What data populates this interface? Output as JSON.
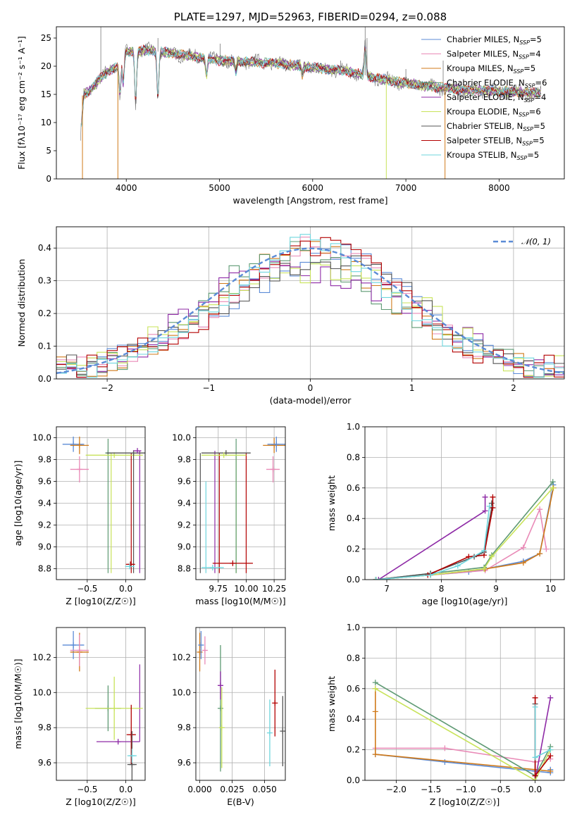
{
  "colors": {
    "Chabrier MILES": "#5b8bd6",
    "Salpeter MILES": "#e98ab7",
    "Kroupa MILES": "#d07a1a",
    "Chabrier ELODIE": "#5e9a73",
    "Salpeter ELODIE": "#8e2aa6",
    "Kroupa ELODIE": "#c8e35a",
    "Chabrier STELIB": "#555555",
    "Salpeter STELIB": "#b30000",
    "Kroupa STELIB": "#6fd6de",
    "data": "#777777",
    "gauss": "#5b8bd6"
  },
  "chart_data": [
    {
      "id": "spectrum",
      "type": "line",
      "title": "PLATE=1297, MJD=52963, FIBERID=0294, z=0.088",
      "xlabel": "wavelength [Angstrom, rest frame]",
      "ylabel": "Flux [fλ10⁻¹⁷ erg cm⁻² s⁻¹ A⁻¹]",
      "xlim": [
        3250,
        8700
      ],
      "ylim": [
        0,
        27
      ],
      "xticks": [
        4000,
        5000,
        6000,
        7000,
        8000
      ],
      "yticks": [
        0,
        5,
        10,
        15,
        20,
        25
      ],
      "legend_position": "top-right",
      "legend": [
        {
          "series": "Chabrier MILES",
          "text": "Chabrier MILES, N",
          "sub": "SSP",
          "tail": "=5"
        },
        {
          "series": "Salpeter MILES",
          "text": "Salpeter MILES, N",
          "sub": "SSP",
          "tail": "=4"
        },
        {
          "series": "Kroupa MILES",
          "text": "Kroupa MILES, N",
          "sub": "SSP",
          "tail": "=5"
        },
        {
          "series": "Chabrier ELODIE",
          "text": "Chabrier ELODIE, N",
          "sub": "SSP",
          "tail": "=6"
        },
        {
          "series": "Salpeter ELODIE",
          "text": "Salpeter ELODIE, N",
          "sub": "SSP",
          "tail": "=4"
        },
        {
          "series": "Kroupa ELODIE",
          "text": "Kroupa ELODIE, N",
          "sub": "SSP",
          "tail": "=6"
        },
        {
          "series": "Chabrier STELIB",
          "text": "Chabrier STELIB, N",
          "sub": "SSP",
          "tail": "=5"
        },
        {
          "series": "Salpeter STELIB",
          "text": "Salpeter STELIB, N",
          "sub": "SSP",
          "tail": "=5"
        },
        {
          "series": "Kroupa STELIB",
          "text": "Kroupa STELIB, N",
          "sub": "SSP",
          "tail": "=5"
        }
      ],
      "continuum": [
        [
          3500,
          14.5
        ],
        [
          3600,
          15.5
        ],
        [
          3700,
          17.5
        ],
        [
          3800,
          19.0
        ],
        [
          3900,
          20.0
        ],
        [
          3950,
          21.5
        ],
        [
          4000,
          22.5
        ],
        [
          4200,
          22.8
        ],
        [
          4400,
          22.5
        ],
        [
          4600,
          22.0
        ],
        [
          4800,
          21.5
        ],
        [
          5000,
          21.0
        ],
        [
          5300,
          20.8
        ],
        [
          5600,
          20.5
        ],
        [
          6000,
          19.8
        ],
        [
          6400,
          19.0
        ],
        [
          6800,
          17.5
        ],
        [
          7200,
          16.5
        ],
        [
          7600,
          15.8
        ],
        [
          8000,
          15.6
        ],
        [
          8400,
          15.2
        ]
      ],
      "features": [
        [
          3933,
          6
        ],
        [
          3968,
          5
        ],
        [
          4101,
          9
        ],
        [
          4340,
          8
        ],
        [
          4861,
          3
        ],
        [
          5175,
          2
        ],
        [
          5890,
          1.5
        ],
        [
          6563,
          -5
        ]
      ],
      "lines": [
        [
          3727,
          27
        ],
        [
          4340,
          25
        ],
        [
          5007,
          24
        ],
        [
          6563,
          27
        ],
        [
          6583,
          25
        ],
        [
          6300,
          21
        ],
        [
          7400,
          21
        ],
        [
          7000,
          19.5
        ]
      ],
      "drops": [
        {
          "series": "Kroupa MILES",
          "x": 3910
        },
        {
          "series": "Kroupa MILES",
          "x": 7420
        },
        {
          "series": "Kroupa ELODIE",
          "x": 6790
        },
        {
          "series": "Kroupa MILES",
          "x": 3530
        }
      ]
    },
    {
      "id": "residuals",
      "type": "line",
      "xlabel": "(data-model)/error",
      "ylabel": "Normed distribution",
      "xlim": [
        -2.5,
        2.5
      ],
      "ylim": [
        0,
        0.465
      ],
      "xticks": [
        -2,
        -1,
        0,
        1,
        2
      ],
      "yticks": [
        0.0,
        0.1,
        0.2,
        0.3,
        0.4
      ],
      "grid": true,
      "legend_position": "top-right",
      "legend": [
        {
          "text": "𝒩(0, 1)"
        }
      ],
      "bin_width": 0.1,
      "gaussian": {
        "mean": 0,
        "sigma": 1
      }
    },
    {
      "id": "age_vs_Z",
      "type": "scatter",
      "xlabel": "Z [log10(Z/Z☉)]",
      "ylabel": "age  [log10(age/yr)]",
      "xlim": [
        -0.9,
        0.25
      ],
      "ylim": [
        8.7,
        10.1
      ],
      "xticks": [
        -0.5,
        0.0
      ],
      "yticks": [
        8.8,
        9.0,
        9.2,
        9.4,
        9.6,
        9.8,
        10.0
      ],
      "grid": true,
      "points": [
        {
          "series": "Chabrier MILES",
          "x": -0.68,
          "y": 9.94,
          "xerr": 0.14,
          "yerr": 0.07
        },
        {
          "series": "Kroupa MILES",
          "x": -0.6,
          "y": 9.93,
          "xerr": 0.12,
          "yerr": 0.08
        },
        {
          "series": "Salpeter MILES",
          "x": -0.6,
          "y": 9.71,
          "xerr": 0.12,
          "yerr": 0.12
        },
        {
          "series": "Chabrier ELODIE",
          "x": -0.23,
          "y": 9.86,
          "xerr": 0.0,
          "yerr": 0.0
        },
        {
          "series": "Kroupa ELODIE",
          "x": -0.15,
          "y": 9.84,
          "xerr": 0.37,
          "yerr": 0.0
        },
        {
          "series": "Chabrier STELIB",
          "x": 0.1,
          "y": 9.86,
          "xerr": 0.35,
          "yerr": 0.0
        },
        {
          "series": "Salpeter ELODIE",
          "x": 0.15,
          "y": 9.88,
          "xerr": 0.05,
          "yerr": 0.0
        },
        {
          "series": "Salpeter STELIB",
          "x": 0.06,
          "y": 8.84,
          "xerr": 0.06,
          "yerr": 0.0
        },
        {
          "series": "Kroupa STELIB",
          "x": 0.05,
          "y": 8.82,
          "xerr": 0.06,
          "yerr": 0.0
        }
      ],
      "vlines": [
        {
          "series": "Chabrier ELODIE",
          "x": -0.23,
          "y0": 8.76,
          "y1": 9.99
        },
        {
          "series": "Kroupa ELODIE",
          "x": -0.19,
          "y0": 8.76,
          "y1": 9.86
        },
        {
          "series": "Salpeter ELODIE",
          "x": 0.18,
          "y0": 8.76,
          "y1": 9.88
        },
        {
          "series": "Salpeter STELIB",
          "x": 0.07,
          "y0": 8.76,
          "y1": 9.86
        },
        {
          "series": "Chabrier STELIB",
          "x": 0.1,
          "y0": 8.76,
          "y1": 9.86
        }
      ]
    },
    {
      "id": "age_vs_mass",
      "type": "scatter",
      "xlabel": "mass [log10(M/M☉)]",
      "ylabel": "",
      "xlim": [
        9.55,
        10.35
      ],
      "ylim": [
        8.7,
        10.1
      ],
      "xticks": [
        9.75,
        10.0,
        10.25
      ],
      "yticks": [
        8.8,
        9.0,
        9.2,
        9.4,
        9.6,
        9.8,
        10.0
      ],
      "grid": true,
      "points": [
        {
          "series": "Kroupa MILES",
          "x": 10.25,
          "y": 9.93,
          "xerr": 0.1,
          "yerr": 0.07
        },
        {
          "series": "Chabrier MILES",
          "x": 10.27,
          "y": 9.94,
          "xerr": 0.08,
          "yerr": 0.07
        },
        {
          "series": "Salpeter MILES",
          "x": 10.24,
          "y": 9.71,
          "xerr": 0.06,
          "yerr": 0.12
        },
        {
          "series": "Chabrier STELIB",
          "x": 9.82,
          "y": 9.86,
          "xerr": 0.22,
          "yerr": 0.0
        },
        {
          "series": "Kroupa ELODIE",
          "x": 9.8,
          "y": 9.84,
          "xerr": 0.2,
          "yerr": 0.0
        },
        {
          "series": "Salpeter STELIB",
          "x": 9.88,
          "y": 8.85,
          "xerr": 0.18,
          "yerr": 0.0
        },
        {
          "series": "Kroupa STELIB",
          "x": 9.7,
          "y": 8.81,
          "xerr": 0.1,
          "yerr": 0.0
        }
      ],
      "vlines": [
        {
          "series": "Chabrier STELIB",
          "x": 9.59,
          "y0": 8.76,
          "y1": 9.86
        },
        {
          "series": "Kroupa STELIB",
          "x": 9.64,
          "y0": 8.76,
          "y1": 9.6
        },
        {
          "series": "Salpeter ELODIE",
          "x": 9.72,
          "y0": 8.76,
          "y1": 9.88
        },
        {
          "series": "Salpeter STELIB",
          "x": 9.76,
          "y0": 8.76,
          "y1": 9.86
        },
        {
          "series": "Kroupa ELODIE",
          "x": 9.91,
          "y0": 8.76,
          "y1": 9.83
        },
        {
          "series": "Chabrier ELODIE",
          "x": 9.91,
          "y0": 8.76,
          "y1": 9.99
        },
        {
          "series": "Salpeter STELIB",
          "x": 10.0,
          "y0": 8.76,
          "y1": 9.86
        }
      ]
    },
    {
      "id": "mw_vs_age",
      "type": "line",
      "xlabel": "age  [log10(age/yr)]",
      "ylabel": "mass weight",
      "xlim": [
        6.6,
        10.25
      ],
      "ylim": [
        0,
        1
      ],
      "xticks": [
        7,
        8,
        9,
        10
      ],
      "yticks": [
        0.0,
        0.2,
        0.4,
        0.6,
        0.8,
        1.0
      ],
      "grid": true,
      "series": [
        {
          "name": "Chabrier MILES",
          "x": [
            6.8,
            7.8,
            8.5,
            8.8,
            9.5,
            9.8,
            10.05
          ],
          "y": [
            0.0,
            0.03,
            0.05,
            0.07,
            0.12,
            0.17,
            0.62
          ]
        },
        {
          "name": "Salpeter MILES",
          "x": [
            6.8,
            7.8,
            8.8,
            9.5,
            9.8,
            9.92
          ],
          "y": [
            0.0,
            0.03,
            0.06,
            0.21,
            0.46,
            0.2
          ]
        },
        {
          "name": "Kroupa MILES",
          "x": [
            6.8,
            7.8,
            8.8,
            9.5,
            9.8,
            10.05
          ],
          "y": [
            0.0,
            0.03,
            0.07,
            0.11,
            0.17,
            0.6
          ]
        },
        {
          "name": "Chabrier ELODIE",
          "x": [
            6.8,
            7.8,
            8.78,
            8.92,
            10.04
          ],
          "y": [
            0.0,
            0.04,
            0.08,
            0.16,
            0.64
          ]
        },
        {
          "name": "Salpeter ELODIE",
          "x": [
            6.85,
            8.8,
            8.8
          ],
          "y": [
            0.0,
            0.45,
            0.54
          ]
        },
        {
          "name": "Kroupa ELODIE",
          "x": [
            6.8,
            7.8,
            8.78,
            8.92,
            10.04
          ],
          "y": [
            0.0,
            0.03,
            0.07,
            0.15,
            0.6
          ]
        },
        {
          "name": "Chabrier STELIB",
          "x": [
            6.8,
            7.8,
            8.6,
            8.78,
            8.92,
            8.92
          ],
          "y": [
            0.0,
            0.04,
            0.15,
            0.18,
            0.47,
            0.5
          ]
        },
        {
          "name": "Salpeter STELIB",
          "x": [
            7.75,
            8.5,
            8.78,
            8.94,
            8.94
          ],
          "y": [
            0.03,
            0.15,
            0.16,
            0.47,
            0.54
          ]
        },
        {
          "name": "Kroupa STELIB",
          "x": [
            6.8,
            7.8,
            8.3,
            8.78,
            8.88
          ],
          "y": [
            0.0,
            0.03,
            0.09,
            0.19,
            0.48
          ]
        }
      ]
    },
    {
      "id": "mass_vs_Z",
      "type": "scatter",
      "xlabel": "Z [log10(Z/Z☉)]",
      "ylabel": "mass [log10(M/M☉)]",
      "xlim": [
        -0.9,
        0.25
      ],
      "ylim": [
        9.5,
        10.37
      ],
      "xticks": [
        -0.5,
        0.0
      ],
      "yticks": [
        9.6,
        9.8,
        10.0,
        10.2
      ],
      "grid": true,
      "points": [
        {
          "series": "Chabrier MILES",
          "x": -0.68,
          "y": 10.27,
          "xerr": 0.14,
          "yerr": 0.08
        },
        {
          "series": "Kroupa MILES",
          "x": -0.6,
          "y": 10.23,
          "xerr": 0.12,
          "yerr": 0.11
        },
        {
          "series": "Salpeter MILES",
          "x": -0.6,
          "y": 10.24,
          "xerr": 0.12,
          "yerr": 0.09
        },
        {
          "series": "Chabrier ELODIE",
          "x": -0.23,
          "y": 9.91,
          "xerr": 0.17,
          "yerr": 0.13
        },
        {
          "series": "Kroupa ELODIE",
          "x": -0.15,
          "y": 9.91,
          "xerr": 0.37,
          "yerr": 0.18
        },
        {
          "series": "Salpeter ELODIE",
          "x": -0.1,
          "y": 9.72,
          "xerr": 0.28,
          "yerr": 0.0
        },
        {
          "series": "Salpeter STELIB",
          "x": 0.07,
          "y": 9.76,
          "xerr": 0.06,
          "yerr": 0.17
        },
        {
          "series": "Chabrier STELIB",
          "x": 0.08,
          "y": 9.59,
          "xerr": 0.06,
          "yerr": 0.19
        },
        {
          "series": "Kroupa STELIB",
          "x": 0.08,
          "y": 9.64,
          "xerr": 0.06,
          "yerr": 0.04
        }
      ],
      "vlines": [
        {
          "series": "Salpeter ELODIE",
          "x": 0.18,
          "y0": 9.72,
          "y1": 10.16
        }
      ]
    },
    {
      "id": "mass_vs_ebv",
      "type": "scatter",
      "xlabel": "E(B-V)",
      "ylabel": "",
      "xlim": [
        -0.003,
        0.066
      ],
      "ylim": [
        9.5,
        10.37
      ],
      "xticks": [
        0.0,
        0.025,
        0.05
      ],
      "yticks": [
        9.6,
        9.8,
        10.0,
        10.2
      ],
      "grid": true,
      "points": [
        {
          "series": "Kroupa MILES",
          "x": 0.0,
          "y": 10.23,
          "xerr": 0,
          "yerr": 0.11
        },
        {
          "series": "Chabrier MILES",
          "x": 0.001,
          "y": 10.27,
          "xerr": 0,
          "yerr": 0.08
        },
        {
          "series": "Salpeter MILES",
          "x": 0.004,
          "y": 10.24,
          "xerr": 0,
          "yerr": 0.08
        },
        {
          "series": "Chabrier ELODIE",
          "x": 0.016,
          "y": 9.91,
          "xerr": 0,
          "yerr": 0.36
        },
        {
          "series": "Salpeter ELODIE",
          "x": 0.016,
          "y": 10.04,
          "xerr": 0,
          "yerr": 0.08
        },
        {
          "series": "Kroupa ELODIE",
          "x": 0.017,
          "y": 9.8,
          "xerr": 0,
          "yerr": 0.23
        },
        {
          "series": "Kroupa STELIB",
          "x": 0.054,
          "y": 9.77,
          "xerr": 0,
          "yerr": 0.19
        },
        {
          "series": "Salpeter STELIB",
          "x": 0.058,
          "y": 9.94,
          "xerr": 0,
          "yerr": 0.19
        },
        {
          "series": "Chabrier STELIB",
          "x": 0.064,
          "y": 9.78,
          "xerr": 0,
          "yerr": 0.2
        }
      ]
    },
    {
      "id": "mw_vs_Z",
      "type": "line",
      "xlabel": "Z [log10(Z/Z☉)]",
      "ylabel": "mass weight",
      "xlim": [
        -2.45,
        0.42
      ],
      "ylim": [
        0,
        1
      ],
      "xticks": [
        -2.0,
        -1.5,
        -1.0,
        -0.5,
        0.0
      ],
      "yticks": [
        0.0,
        0.2,
        0.4,
        0.6,
        0.8,
        1.0
      ],
      "grid": true,
      "series": [
        {
          "name": "Chabrier MILES",
          "x": [
            -2.3,
            -1.3,
            0.0,
            0.22,
            0.22
          ],
          "y": [
            0.17,
            0.12,
            0.06,
            0.05,
            0.07
          ]
        },
        {
          "name": "Salpeter MILES",
          "x": [
            -2.3,
            -1.3,
            0.0,
            0.22
          ],
          "y": [
            0.21,
            0.21,
            0.12,
            0.14
          ]
        },
        {
          "name": "Kroupa MILES",
          "x": [
            -2.3,
            -2.3,
            -2.3,
            0.0,
            0.22
          ],
          "y": [
            0.6,
            0.45,
            0.17,
            0.07,
            0.06
          ]
        },
        {
          "name": "Chabrier ELODIE",
          "x": [
            -2.3,
            0.0,
            0.22
          ],
          "y": [
            0.64,
            0.03,
            0.22
          ]
        },
        {
          "name": "Salpeter ELODIE",
          "x": [
            0.0,
            0.22
          ],
          "y": [
            0.0,
            0.54
          ]
        },
        {
          "name": "Kroupa ELODIE",
          "x": [
            -2.3,
            0.0,
            0.22
          ],
          "y": [
            0.6,
            0.0,
            0.2
          ]
        },
        {
          "name": "Chabrier STELIB",
          "x": [
            0.0,
            0.0
          ],
          "y": [
            0.03,
            0.5
          ]
        },
        {
          "name": "Salpeter STELIB",
          "x": [
            0.0,
            0.0,
            0.22
          ],
          "y": [
            0.54,
            0.03,
            0.16
          ]
        },
        {
          "name": "Kroupa STELIB",
          "x": [
            0.0,
            0.0,
            0.22
          ],
          "y": [
            0.48,
            0.15,
            0.2
          ]
        }
      ]
    }
  ]
}
